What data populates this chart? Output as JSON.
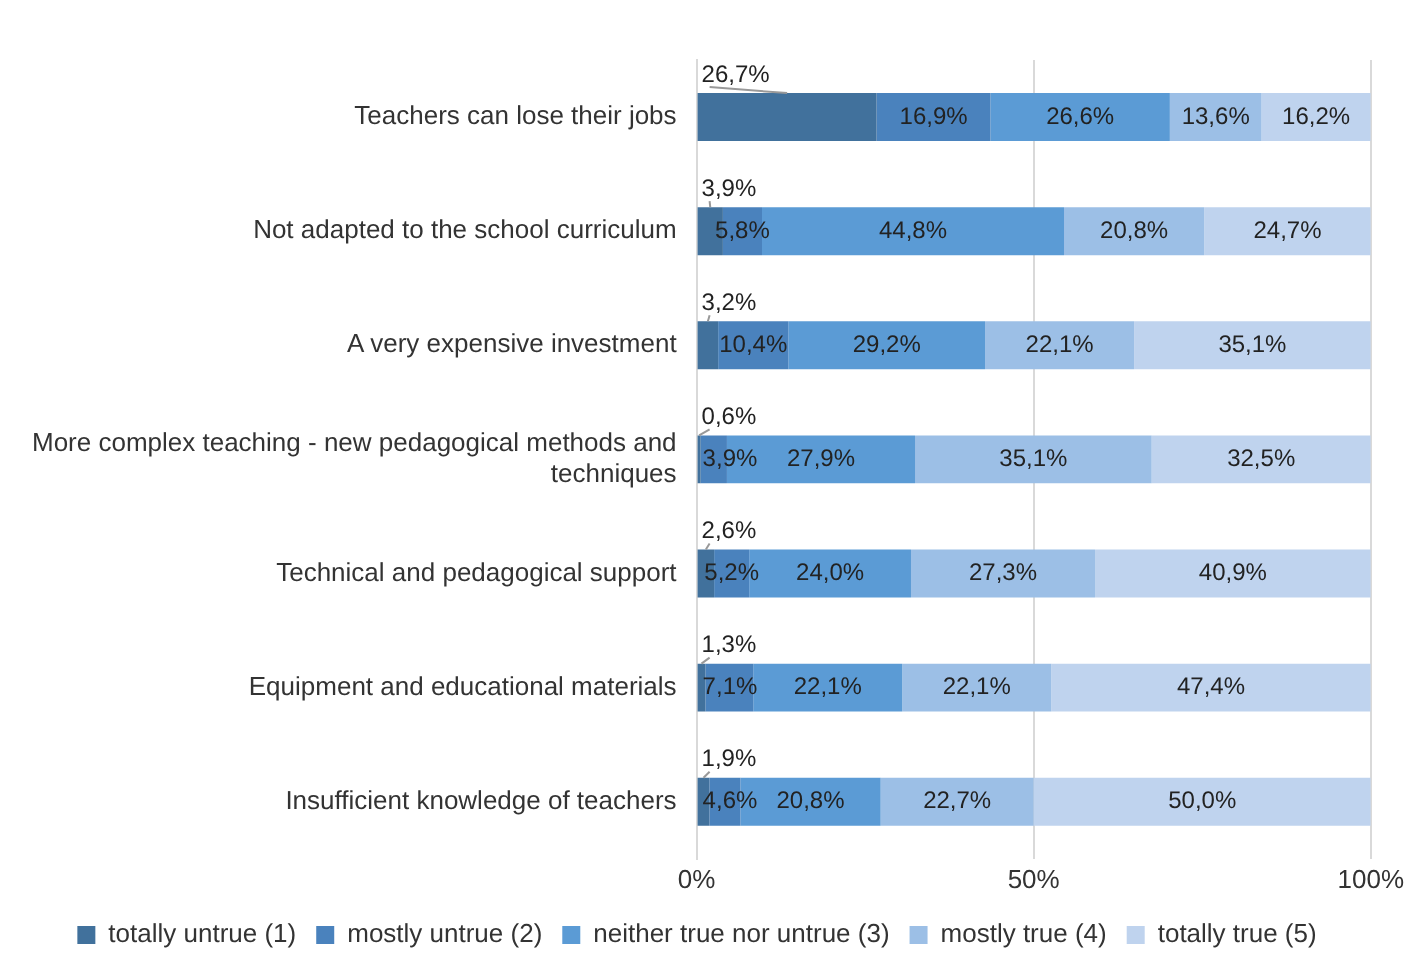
{
  "chart_data": {
    "type": "bar",
    "orientation": "horizontal",
    "stacked": true,
    "categories": [
      "Teachers can lose their jobs",
      "Not adapted to the school curriculum",
      "A very expensive investment",
      "More complex teaching - new pedagogical methods and techniques",
      "Technical and pedagogical support",
      "Equipment and educational materials",
      "Insufficient knowledge of teachers"
    ],
    "series": [
      {
        "name": "totally untrue (1)",
        "color": "#41719c",
        "values": [
          26.7,
          3.9,
          3.2,
          0.6,
          2.6,
          1.3,
          1.9
        ],
        "value_labels": [
          "26,7%",
          "3,9%",
          "3,2%",
          "0,6%",
          "2,6%",
          "1,3%",
          "1,9%"
        ]
      },
      {
        "name": "mostly untrue (2)",
        "color": "#4a82bd",
        "values": [
          16.9,
          5.8,
          10.4,
          3.9,
          5.2,
          7.1,
          4.6
        ],
        "value_labels": [
          "16,9%",
          "5,8%",
          "10,4%",
          "3,9%",
          "5,2%",
          "7,1%",
          "4,6%"
        ]
      },
      {
        "name": "neither true nor untrue (3)",
        "color": "#5b9bd5",
        "values": [
          26.6,
          44.8,
          29.2,
          27.9,
          24.0,
          22.1,
          20.8
        ],
        "value_labels": [
          "26,6%",
          "44,8%",
          "29,2%",
          "27,9%",
          "24,0%",
          "22,1%",
          "20,8%"
        ]
      },
      {
        "name": "mostly true (4)",
        "color": "#9cbfe6",
        "values": [
          13.6,
          20.8,
          22.1,
          35.1,
          27.3,
          22.1,
          22.7
        ],
        "value_labels": [
          "13,6%",
          "20,8%",
          "22,1%",
          "35,1%",
          "27,3%",
          "22,1%",
          "22,7%"
        ]
      },
      {
        "name": "totally true (5)",
        "color": "#bfd3ee",
        "values": [
          16.2,
          24.7,
          35.1,
          32.5,
          40.9,
          47.4,
          50.0
        ],
        "value_labels": [
          "16,2%",
          "24,7%",
          "35,1%",
          "32,5%",
          "40,9%",
          "47,4%",
          "50,0%"
        ]
      }
    ],
    "xlim": [
      0,
      100
    ],
    "xticks": [
      {
        "value": 0,
        "label": "0%"
      },
      {
        "value": 50,
        "label": "50%"
      },
      {
        "value": 100,
        "label": "100%"
      }
    ],
    "grid": "x",
    "legend": "bottom"
  }
}
